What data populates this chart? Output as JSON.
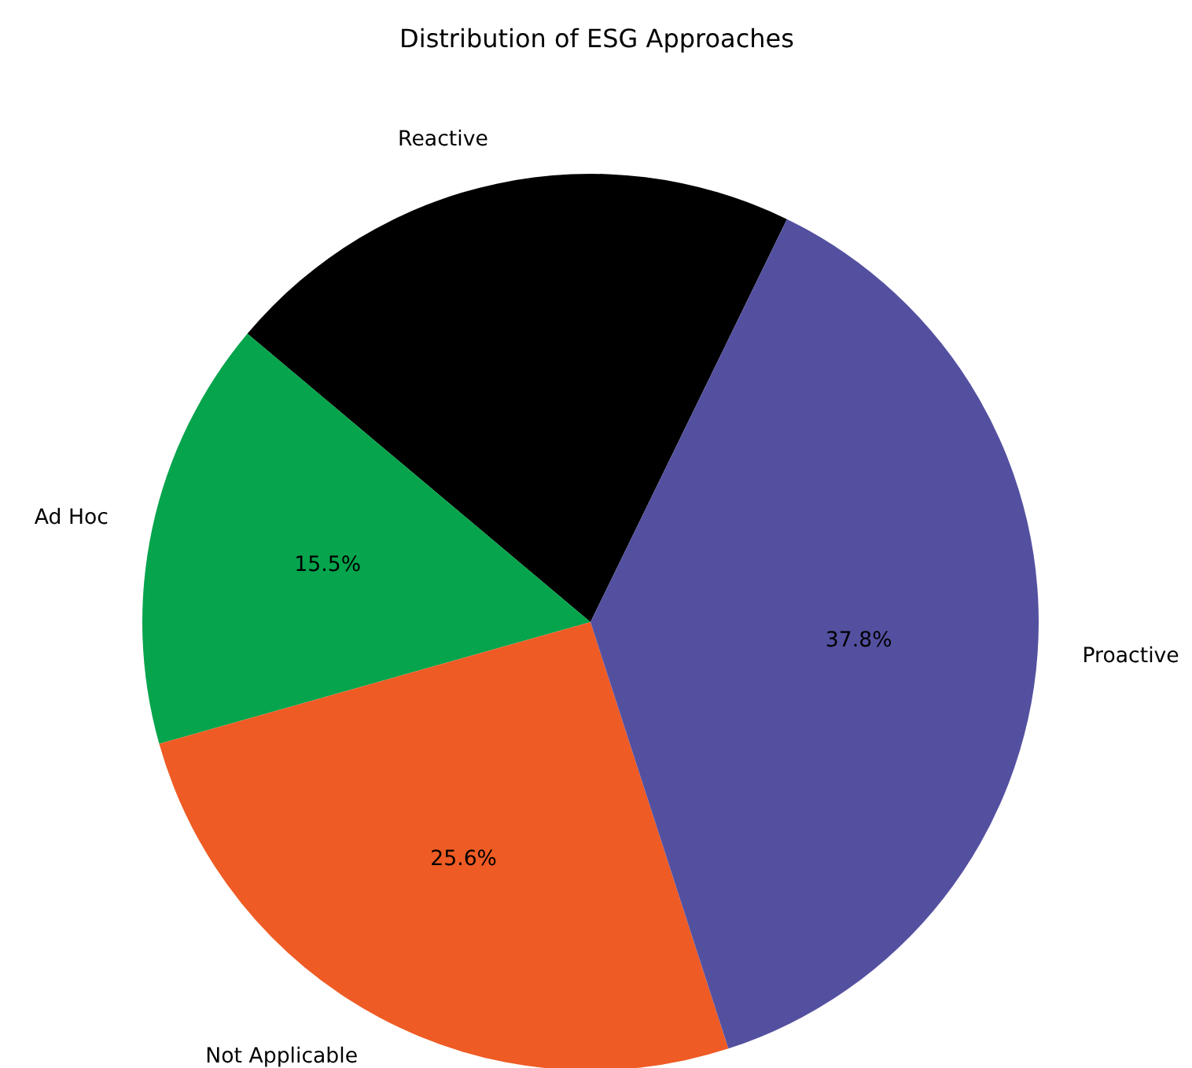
{
  "chart_data": {
    "type": "pie",
    "title": "Distribution of ESG Approaches",
    "categories": [
      "Reactive",
      "Ad Hoc",
      "Not Applicable",
      "Proactive"
    ],
    "values": [
      21.1,
      15.5,
      25.6,
      37.8
    ],
    "colors": [
      "#000000",
      "#06a44c",
      "#ee5b24",
      "#5450a0"
    ],
    "value_labels": [
      null,
      "15.5%",
      "25.6%",
      "37.8%"
    ]
  }
}
